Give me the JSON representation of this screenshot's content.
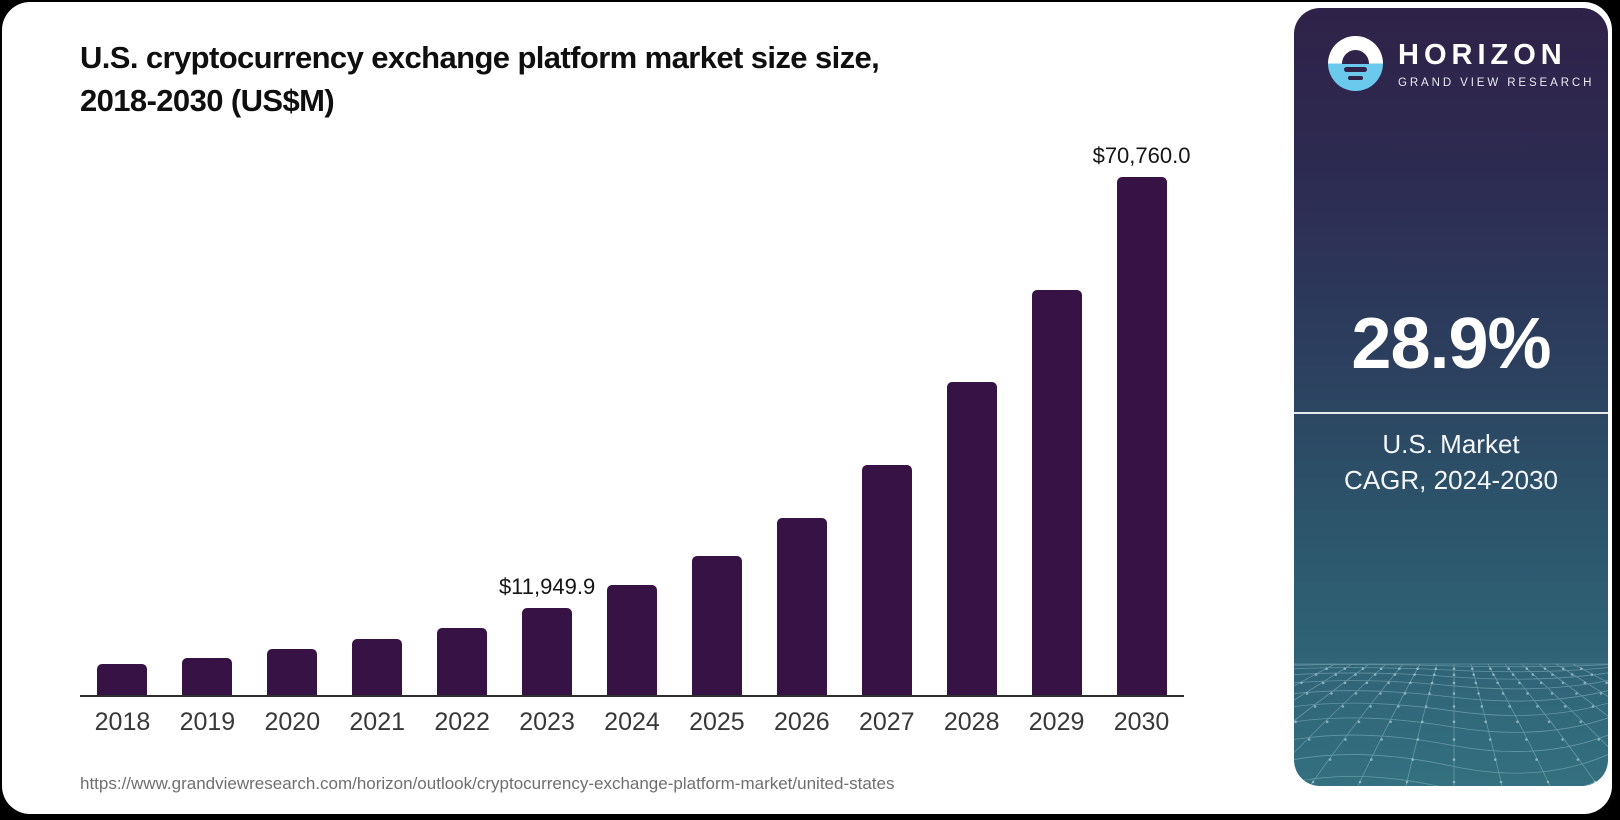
{
  "header": {
    "title_lines": [
      "U.S. cryptocurrency exchange platform market size size,",
      "2018-2030 (US$M)"
    ]
  },
  "chart_data": {
    "type": "bar",
    "title": "U.S. cryptocurrency exchange platform market size size, 2018-2030 (US$M)",
    "unit": "US$M",
    "categories": [
      "2018",
      "2019",
      "2020",
      "2021",
      "2022",
      "2023",
      "2024",
      "2025",
      "2026",
      "2027",
      "2028",
      "2029",
      "2030"
    ],
    "values": [
      4300,
      5100,
      6300,
      7600,
      9200,
      11949.9,
      15000,
      19000,
      24200,
      31400,
      42800,
      55300,
      70760
    ],
    "point_labels": {
      "2023": "$11,949.9",
      "2030": "$70,760.0"
    },
    "xlabel": "",
    "ylabel": "",
    "ylim": [
      0,
      70760
    ],
    "grid": false,
    "legend": false,
    "bar_color": "#371245",
    "axis_line_color": "#2e2e2e"
  },
  "footer": {
    "source_url": "https://www.grandviewresearch.com/horizon/outlook/cryptocurrency-exchange-platform-market/united-states"
  },
  "sidebar": {
    "brand": "HORIZON",
    "brand_sub": "GRAND VIEW RESEARCH",
    "stat_value": "28.9%",
    "stat_caption_lines": [
      "U.S. Market",
      "CAGR, 2024-2030"
    ],
    "colors": {
      "gradient_top": "#2f2248",
      "gradient_bottom": "#34707f",
      "logo_blue": "#6cc9ee"
    }
  }
}
